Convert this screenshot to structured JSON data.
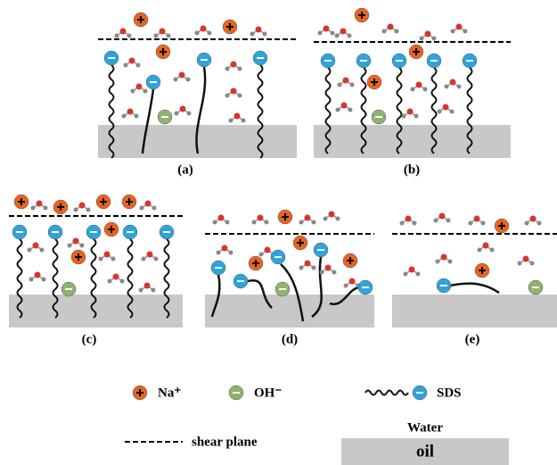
{
  "panels": {
    "labels": [
      "(a)",
      "(b)",
      "(c)",
      "(d)",
      "(e)"
    ]
  },
  "legend": {
    "sodium": "Na⁺",
    "hydroxide": "OH⁻",
    "surfactant": "SDS",
    "shear_plane": "shear plane",
    "water": "Water",
    "oil": "oil"
  }
}
